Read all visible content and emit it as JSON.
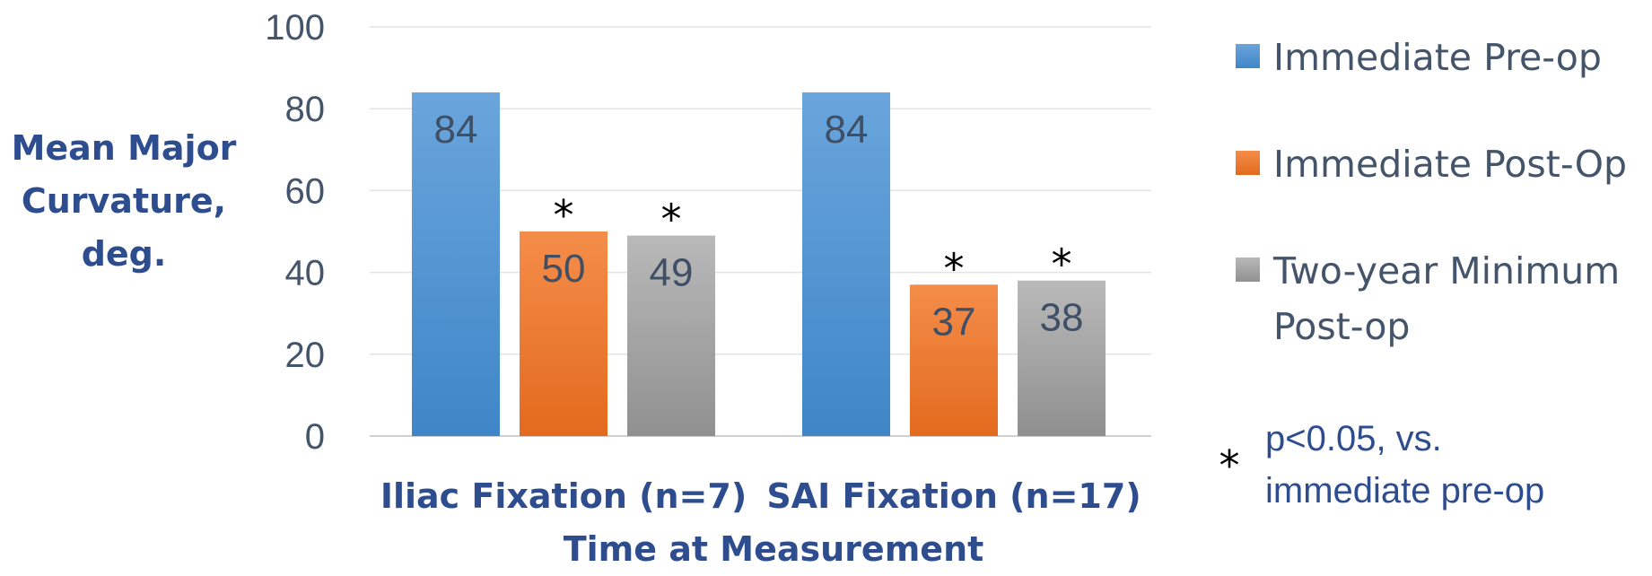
{
  "chart_data": {
    "type": "bar",
    "categories": [
      "Iliac Fixation (n=7)",
      "SAI Fixation (n=17)"
    ],
    "series": [
      {
        "name": "Immediate Pre-op",
        "values": [
          84,
          84
        ],
        "color": "#5b9bd5",
        "significant": [
          false,
          false
        ]
      },
      {
        "name": "Immediate Post-Op",
        "values": [
          50,
          37
        ],
        "color": "#ed7d31",
        "significant": [
          true,
          true
        ]
      },
      {
        "name": "Two-year Minimum Post-op",
        "legend_lines": [
          "Two-year Minimum",
          "Post-op"
        ],
        "values": [
          49,
          38
        ],
        "color": "#a5a5a5",
        "significant": [
          true,
          true
        ]
      }
    ],
    "data_labels": [
      [
        "84",
        "84"
      ],
      [
        "50",
        "37"
      ],
      [
        "49",
        "38"
      ]
    ],
    "significance_marker": "*",
    "ylabel_lines": [
      "Mean Major",
      "Curvature,",
      "deg."
    ],
    "xlabel": "Time at Measurement",
    "ylim": [
      0,
      100
    ],
    "yticks": [
      "0",
      "20",
      "40",
      "60",
      "80",
      "100"
    ],
    "grid": true,
    "legend_position": "right",
    "note": {
      "marker": "*",
      "lines": [
        "p<0.05, vs.",
        "immediate pre-op"
      ]
    }
  }
}
